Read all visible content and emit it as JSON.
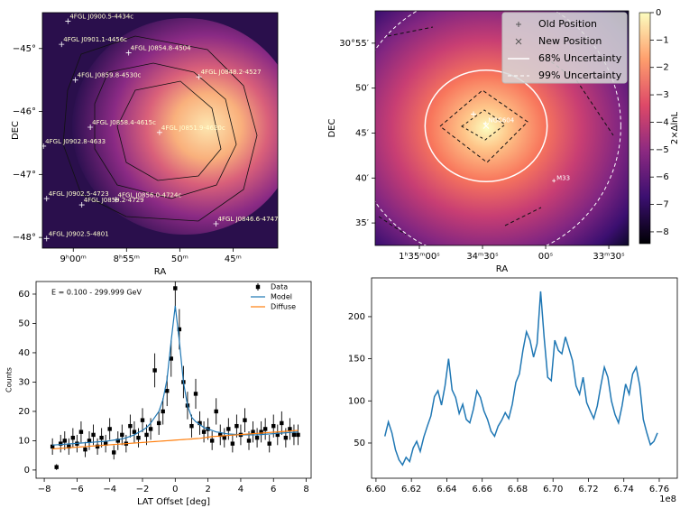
{
  "chart_data": [
    {
      "type": "sky-map",
      "xlabel": "RA",
      "ylabel": "DEC",
      "xlim": [
        542.9,
        520.8
      ],
      "ylim": [
        -48.17,
        -44.43
      ],
      "xticks": [
        {
          "value": 540,
          "label": "9ʰ00ᵐ"
        },
        {
          "value": 535,
          "label": "8ʰ55ᵐ"
        },
        {
          "value": 530,
          "label": "50ᵐ"
        },
        {
          "value": 525,
          "label": "45ᵐ"
        }
      ],
      "yticks": [
        {
          "value": -45,
          "label": "−45°"
        },
        {
          "value": -46,
          "label": "−46°"
        },
        {
          "value": -47,
          "label": "−47°"
        },
        {
          "value": -48,
          "label": "−48°"
        }
      ],
      "sources": [
        {
          "name": "4FGL J0900.5-4434c",
          "x": 540.5,
          "y": -44.567
        },
        {
          "name": "4FGL J0901.1-4456c",
          "x": 541.1,
          "y": -44.933
        },
        {
          "name": "4FGL J0854.8-4504",
          "x": 534.8,
          "y": -45.067
        },
        {
          "name": "4FGL J0859.8-4530c",
          "x": 539.8,
          "y": -45.5
        },
        {
          "name": "4FGL J0848.2-4527",
          "x": 528.2,
          "y": -45.45
        },
        {
          "name": "4FGL J0858.4-4615c",
          "x": 538.4,
          "y": -46.25
        },
        {
          "name": "4FGL J0851.9-4620c",
          "x": 531.9,
          "y": -46.333
        },
        {
          "name": "4FGL J0902.8-4633",
          "x": 542.8,
          "y": -46.55
        },
        {
          "name": "4FGL J0856.0-4724c",
          "x": 536.0,
          "y": -47.4
        },
        {
          "name": "4FGL J0902.5-4723",
          "x": 542.5,
          "y": -47.383
        },
        {
          "name": "4FGL J0859.2-4729",
          "x": 539.2,
          "y": -47.483
        },
        {
          "name": "4FGL J0846.6-4747",
          "x": 526.6,
          "y": -47.783
        },
        {
          "name": "4FGL J0902.5-4801",
          "x": 542.5,
          "y": -48.017
        }
      ]
    },
    {
      "type": "localization-map",
      "xlabel": "RA",
      "ylabel": "DEC",
      "xlim": [
        141,
        20.6
      ],
      "ylim": [
        32.5,
        58.6
      ],
      "xticks": [
        {
          "value": 120,
          "label": "1ʰ35ᵐ00ˢ"
        },
        {
          "value": 90,
          "label": "34ᵐ30ˢ"
        },
        {
          "value": 60,
          "label": "00ˢ"
        },
        {
          "value": 30,
          "label": "33ᵐ30ˢ"
        }
      ],
      "yticks": [
        {
          "value": 55,
          "label": "30°55′"
        },
        {
          "value": 50,
          "label": "50′"
        },
        {
          "value": 45,
          "label": "45′"
        },
        {
          "value": 40,
          "label": "40′"
        },
        {
          "value": 35,
          "label": "35′"
        }
      ],
      "colorbar": {
        "label": "2×ΔlnL",
        "lim": [
          -8.43,
          0
        ],
        "ticks": [
          0,
          {
            "value": -1,
            "label": "−1"
          },
          {
            "value": -2,
            "label": "−2"
          },
          {
            "value": -3,
            "label": "−3"
          },
          {
            "value": -4,
            "label": "−4"
          },
          {
            "value": -5,
            "label": "−5"
          },
          {
            "value": -6,
            "label": "−6"
          },
          {
            "value": -7,
            "label": "−7"
          },
          {
            "value": -8,
            "label": "−8"
          }
        ]
      },
      "markers": [
        {
          "name": "Old Position",
          "x": 94.3,
          "y": 47.1
        },
        {
          "name": "New Position",
          "x": 88.3,
          "y": 45.8
        }
      ],
      "regions": [
        {
          "name": "68% Uncertainty",
          "rx": 29,
          "ry": 6.2
        },
        {
          "name": "99% Uncertainty",
          "rx": 64,
          "ry": 14.9
        }
      ],
      "sources": [
        {
          "name": "NGC604",
          "x": 88.6,
          "y": 46.1
        },
        {
          "name": "M33",
          "x": 56.1,
          "y": 39.7
        }
      ]
    },
    {
      "type": "profile",
      "title": "E = 0.100 - 299.999 GeV",
      "xlabel": "LAT Offset [deg]",
      "ylabel": "Counts",
      "xlim": [
        -8.5,
        8.3
      ],
      "ylim": [
        -2.8,
        64.3
      ],
      "xticks": [
        {
          "value": -8,
          "label": "−8"
        },
        {
          "value": -6,
          "label": "−6"
        },
        {
          "value": -4,
          "label": "−4"
        },
        {
          "value": -2,
          "label": "−2"
        },
        0,
        2,
        4,
        6,
        8
      ],
      "yticks": [
        0,
        10,
        20,
        30,
        40,
        50,
        60
      ],
      "x": [
        -7.5,
        -7.25,
        -7,
        -6.75,
        -6.5,
        -6.25,
        -6,
        -5.75,
        -5.5,
        -5.25,
        -5,
        -4.75,
        -4.5,
        -4.25,
        -4,
        -3.75,
        -3.5,
        -3.25,
        -3,
        -2.75,
        -2.5,
        -2.25,
        -2,
        -1.75,
        -1.5,
        -1.25,
        -1,
        -0.75,
        -0.5,
        -0.25,
        0,
        0.25,
        0.5,
        0.75,
        1,
        1.25,
        1.5,
        1.75,
        2,
        2.25,
        2.5,
        2.75,
        3,
        3.25,
        3.5,
        3.75,
        4,
        4.25,
        4.5,
        4.75,
        5,
        5.25,
        5.5,
        5.75,
        6,
        6.25,
        6.5,
        6.75,
        7,
        7.25,
        7.5
      ],
      "series": [
        {
          "name": "Data",
          "color": "#000000",
          "values": [
            8,
            1,
            9,
            10,
            8,
            11,
            9,
            13,
            7,
            10,
            12,
            8,
            11,
            9,
            14,
            6,
            10,
            12,
            9,
            15,
            13,
            11,
            17,
            12,
            14,
            34,
            16,
            20,
            27,
            38,
            62,
            48,
            30,
            22,
            15,
            26,
            16,
            13,
            14,
            10,
            20,
            12,
            11,
            14,
            9,
            15,
            12,
            17,
            10,
            13,
            11,
            13,
            14,
            9,
            15,
            12,
            16,
            11,
            14,
            12,
            12
          ],
          "errors": [
            2.8,
            1,
            3,
            3.2,
            2.8,
            3.3,
            3,
            3.6,
            2.6,
            3.2,
            3.5,
            2.8,
            3.3,
            3,
            3.7,
            2.4,
            3.2,
            3.5,
            3,
            3.9,
            3.6,
            3.3,
            4.1,
            3.5,
            3.7,
            5.8,
            4,
            4.5,
            5.2,
            6.2,
            7.9,
            6.9,
            5.5,
            4.7,
            3.9,
            5.1,
            4,
            3.6,
            3.7,
            3.2,
            4.5,
            3.5,
            3.3,
            3.7,
            3,
            3.9,
            3.5,
            4.1,
            3.2,
            3.6,
            3.3,
            3.6,
            3.7,
            3,
            3.9,
            3.5,
            4,
            3.3,
            3.7,
            3.5,
            3.5
          ]
        },
        {
          "name": "Model",
          "color": "#1f77b4",
          "values": [
            8.5,
            8.6,
            8.7,
            8.8,
            8.9,
            9,
            9.1,
            9.2,
            9.3,
            9.4,
            9.5,
            9.6,
            9.7,
            9.8,
            10,
            10.2,
            10.4,
            10.6,
            11,
            11.5,
            12,
            12.8,
            13.5,
            14.5,
            16,
            18,
            20,
            24,
            31,
            44,
            56,
            44,
            30,
            22,
            18,
            16.5,
            15.5,
            14.5,
            14,
            13.5,
            13,
            12.8,
            12.5,
            12.3,
            12.2,
            12.1,
            12,
            12,
            12,
            12,
            12,
            12.1,
            12.2,
            12.3,
            12.4,
            12.5,
            12.6,
            12.7,
            12.8,
            12.9,
            13
          ]
        },
        {
          "name": "Diffuse",
          "color": "#ff7f0e",
          "values": [
            7.2,
            7.3,
            7.4,
            7.5,
            7.6,
            7.7,
            7.8,
            7.9,
            8,
            8.1,
            8.2,
            8.3,
            8.4,
            8.5,
            8.6,
            8.7,
            8.8,
            8.9,
            9,
            9.1,
            9.2,
            9.3,
            9.4,
            9.5,
            9.6,
            9.7,
            9.8,
            9.9,
            10,
            10.1,
            10.2,
            10.3,
            10.4,
            10.5,
            10.6,
            10.7,
            10.8,
            11,
            11.2,
            11.4,
            11.5,
            11.6,
            11.7,
            11.8,
            11.9,
            12,
            12.1,
            12.2,
            12.3,
            12.4,
            12.5,
            12.6,
            12.7,
            12.8,
            12.9,
            13,
            13.1,
            13.2,
            13.3,
            13.4,
            13.5
          ]
        }
      ]
    },
    {
      "type": "line",
      "offset_text": "1e8",
      "xlim": [
        6.5975,
        6.7702
      ],
      "ylim": [
        8.2,
        246
      ],
      "xticks": [
        {
          "value": 6.6,
          "label": "6.60"
        },
        6.62,
        6.64,
        6.66,
        6.68,
        {
          "value": 6.7,
          "label": "6.70"
        },
        6.72,
        6.74,
        6.76
      ],
      "yticks": [
        50,
        100,
        150,
        200
      ],
      "x": [
        6.605,
        6.607,
        6.609,
        6.611,
        6.613,
        6.615,
        6.617,
        6.619,
        6.621,
        6.623,
        6.625,
        6.627,
        6.629,
        6.631,
        6.633,
        6.635,
        6.637,
        6.639,
        6.641,
        6.643,
        6.645,
        6.647,
        6.649,
        6.651,
        6.653,
        6.655,
        6.657,
        6.659,
        6.661,
        6.663,
        6.665,
        6.667,
        6.669,
        6.671,
        6.673,
        6.675,
        6.677,
        6.679,
        6.681,
        6.683,
        6.685,
        6.687,
        6.689,
        6.691,
        6.693,
        6.695,
        6.697,
        6.699,
        6.701,
        6.703,
        6.705,
        6.707,
        6.709,
        6.711,
        6.713,
        6.715,
        6.717,
        6.719,
        6.721,
        6.723,
        6.725,
        6.727,
        6.729,
        6.731,
        6.733,
        6.735,
        6.737,
        6.739,
        6.741,
        6.743,
        6.745,
        6.747,
        6.749,
        6.751,
        6.753,
        6.755,
        6.757,
        6.759
      ],
      "series": [
        {
          "color": "#1f77b4",
          "values": [
            58,
            75,
            62,
            42,
            30,
            24,
            33,
            28,
            44,
            52,
            40,
            57,
            70,
            82,
            105,
            112,
            95,
            118,
            150,
            113,
            104,
            85,
            96,
            78,
            74,
            90,
            112,
            104,
            88,
            78,
            64,
            58,
            70,
            77,
            86,
            79,
            96,
            122,
            132,
            160,
            182,
            172,
            152,
            168,
            230,
            175,
            128,
            124,
            172,
            160,
            156,
            176,
            162,
            148,
            118,
            108,
            128,
            98,
            88,
            79,
            94,
            118,
            140,
            128,
            100,
            84,
            74,
            94,
            120,
            108,
            132,
            140,
            118,
            78,
            62,
            48,
            52,
            62
          ]
        }
      ]
    }
  ]
}
